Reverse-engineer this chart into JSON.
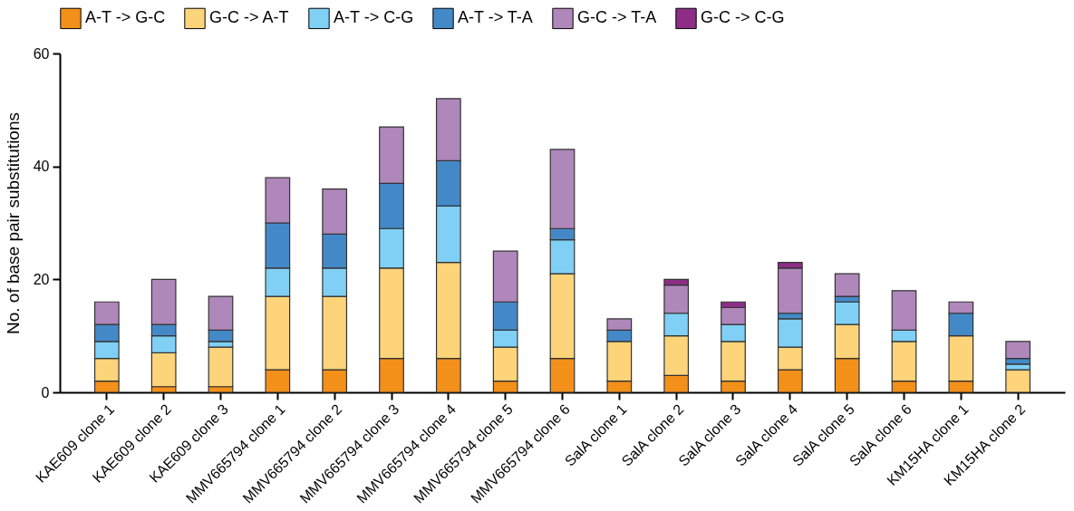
{
  "chart_data": {
    "type": "bar",
    "stacked": true,
    "ylabel": "No. of base pair substitutions",
    "categories": [
      "KAE609 clone 1",
      "KAE609 clone 2",
      "KAE609 clone 3",
      "MMV665794 clone 1",
      "MMV665794 clone 2",
      "MMV665794 clone 3",
      "MMV665794 clone 4",
      "MMV665794 clone 5",
      "MMV665794 clone 6",
      "SalA clone 1",
      "SalA clone 2",
      "SalA clone 3",
      "SalA clone 4",
      "SalA clone 5",
      "SalA clone 6",
      "KM15HA clone 1",
      "KM15HA clone 2"
    ],
    "series": [
      {
        "name": "A-T -> G-C",
        "color": "#f39019",
        "values": [
          2,
          1,
          1,
          4,
          4,
          6,
          6,
          2,
          6,
          2,
          3,
          2,
          4,
          6,
          2,
          2,
          0
        ]
      },
      {
        "name": "G-C -> A-T",
        "color": "#fdd47a",
        "values": [
          4,
          6,
          7,
          13,
          13,
          16,
          17,
          6,
          15,
          7,
          7,
          7,
          4,
          6,
          7,
          8,
          4
        ]
      },
      {
        "name": "A-T -> C-G",
        "color": "#80d0f5",
        "values": [
          3,
          3,
          1,
          5,
          5,
          7,
          10,
          3,
          6,
          0,
          4,
          3,
          5,
          4,
          2,
          0,
          1
        ]
      },
      {
        "name": "A-T -> T-A",
        "color": "#4489c7",
        "values": [
          3,
          2,
          2,
          8,
          6,
          8,
          8,
          5,
          2,
          2,
          0,
          0,
          1,
          1,
          0,
          4,
          1
        ]
      },
      {
        "name": "G-C -> T-A",
        "color": "#af87bb",
        "values": [
          4,
          8,
          6,
          8,
          8,
          10,
          11,
          9,
          14,
          2,
          5,
          3,
          8,
          4,
          7,
          2,
          3
        ]
      },
      {
        "name": "G-C -> C-G",
        "color": "#8c2d86",
        "values": [
          0,
          0,
          0,
          0,
          0,
          0,
          0,
          0,
          0,
          0,
          1,
          1,
          1,
          0,
          0,
          0,
          0
        ]
      }
    ],
    "ylim": [
      0,
      60
    ],
    "yticks": [
      0,
      20,
      40,
      60
    ],
    "grid": false,
    "legend": "top"
  }
}
